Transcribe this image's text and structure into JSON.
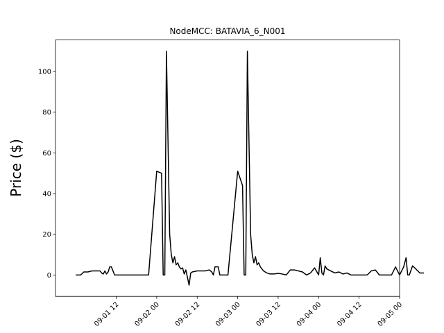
{
  "chart_data": {
    "type": "line",
    "title": "NodeMCC: BATAVIA_6_N001",
    "xlabel": "",
    "ylabel": "Price ($)",
    "xlim": [
      -0.25,
      4.0
    ],
    "ylim": [
      -10.5,
      115.5
    ],
    "grid": false,
    "legend": "none",
    "line_color": "#000000",
    "yticks": [
      0,
      20,
      40,
      60,
      80,
      100
    ],
    "ytick_labels": [
      "0",
      "20",
      "40",
      "60",
      "80",
      "100"
    ],
    "xticks": [
      0.5,
      1.0,
      1.5,
      2.0,
      2.5,
      3.0,
      3.5,
      4.0
    ],
    "xtick_labels": [
      "09-01 12",
      "09-02 00",
      "09-02 12",
      "09-03 00",
      "09-03 12",
      "09-04 00",
      "09-04 12",
      "09-05 00"
    ],
    "x_unit": "days since 09-01 00",
    "series": [
      {
        "name": "",
        "x": [
          0.0,
          0.04,
          0.06,
          0.1,
          0.15,
          0.2,
          0.25,
          0.3,
          0.32,
          0.34,
          0.36,
          0.38,
          0.4,
          0.42,
          0.44,
          0.48,
          0.52,
          0.56,
          0.6,
          0.7,
          0.8,
          0.9,
          1.0,
          1.06,
          1.08,
          1.1,
          1.12,
          1.16,
          1.18,
          1.2,
          1.22,
          1.24,
          1.26,
          1.28,
          1.3,
          1.32,
          1.34,
          1.36,
          1.4,
          1.42,
          1.44,
          1.5,
          1.6,
          1.65,
          1.68,
          1.7,
          1.72,
          1.76,
          1.78,
          1.8,
          1.84,
          1.88,
          2.0,
          2.06,
          2.08,
          2.1,
          2.12,
          2.16,
          2.18,
          2.2,
          2.22,
          2.24,
          2.26,
          2.28,
          2.3,
          2.32,
          2.36,
          2.4,
          2.45,
          2.5,
          2.55,
          2.6,
          2.65,
          2.7,
          2.75,
          2.8,
          2.85,
          2.9,
          2.95,
          3.0,
          3.02,
          3.04,
          3.06,
          3.08,
          3.1,
          3.15,
          3.2,
          3.25,
          3.3,
          3.35,
          3.4,
          3.45,
          3.5,
          3.55,
          3.6,
          3.65,
          3.7,
          3.75,
          3.8,
          3.85,
          3.9,
          3.95,
          4.0,
          4.05,
          4.08,
          4.1,
          4.12,
          4.16,
          4.2,
          4.25,
          4.3
        ],
        "y": [
          0,
          0,
          0,
          1.5,
          1.5,
          2,
          2,
          2,
          1,
          0.5,
          2,
          0.5,
          1.5,
          4,
          4,
          0,
          0,
          0,
          0,
          0,
          0,
          0,
          51,
          50,
          0,
          0,
          110,
          20,
          10,
          6,
          9,
          5,
          6,
          4,
          3,
          3.5,
          0.5,
          2.5,
          -5,
          1,
          1.5,
          2,
          2,
          2.5,
          1.5,
          0,
          4,
          4,
          0,
          0,
          0,
          0,
          51,
          44,
          0,
          0,
          110,
          20,
          10,
          6,
          9,
          5,
          6,
          4,
          3,
          2,
          1,
          0.5,
          0.5,
          0.8,
          0.5,
          0,
          2.5,
          2.5,
          2,
          1.5,
          0,
          1,
          3.5,
          0,
          8.5,
          1,
          0,
          4.5,
          3,
          2,
          1,
          1.5,
          0.5,
          1,
          0,
          0,
          0,
          0,
          0,
          2,
          2.5,
          0,
          0,
          0,
          0,
          4,
          0,
          4,
          8.5,
          0,
          0,
          4.5,
          3,
          1,
          1
        ]
      }
    ]
  }
}
